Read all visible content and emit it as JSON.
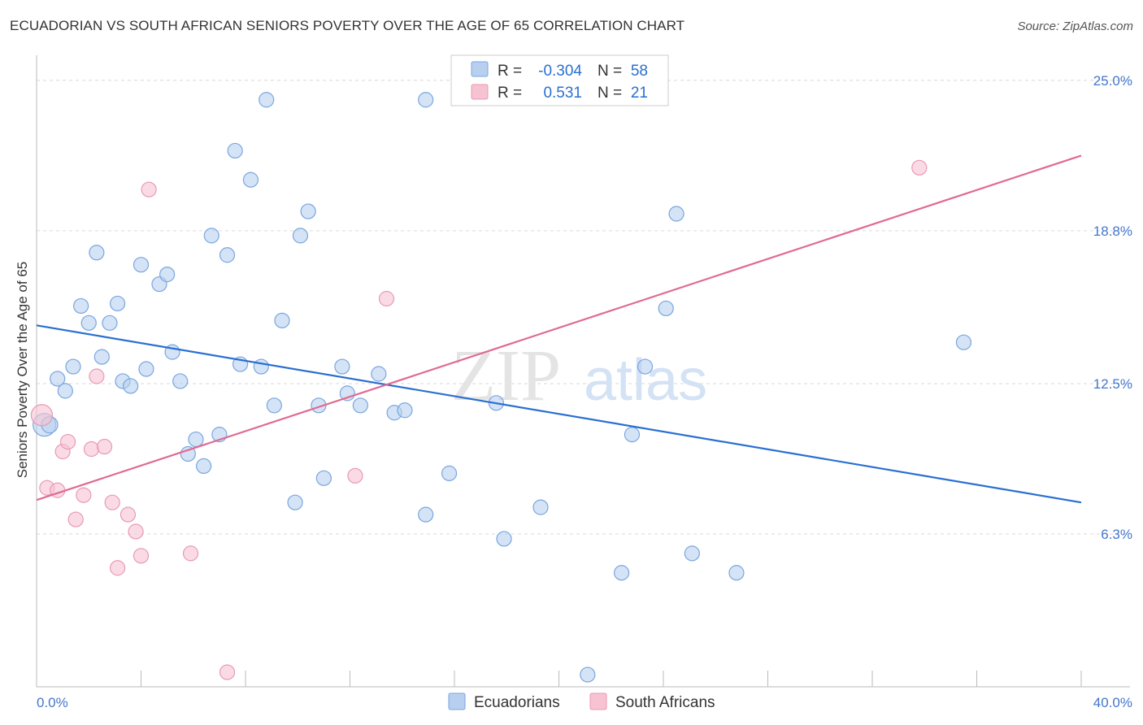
{
  "title": "ECUADORIAN VS SOUTH AFRICAN SENIORS POVERTY OVER THE AGE OF 65 CORRELATION CHART",
  "source": "Source: ZipAtlas.com",
  "watermark": {
    "zip": "ZIP",
    "atlas": "atlas"
  },
  "colors": {
    "blue_fill": "#b8d0f0",
    "blue_stroke": "#7aa6de",
    "blue_line": "#2a6fd1",
    "pink_fill": "#f7c3d3",
    "pink_stroke": "#e89ab3",
    "pink_line": "#e06a93",
    "grid": "#d9d9d9",
    "tick_label": "#4477cc"
  },
  "legend_box": {
    "rows": [
      {
        "r_label": "R =",
        "r_value": "-0.304",
        "n_label": "N =",
        "n_value": "58",
        "series": "blue"
      },
      {
        "r_label": "R =",
        "r_value": "0.531",
        "n_label": "N =",
        "n_value": "21",
        "series": "pink"
      }
    ]
  },
  "chart_data": {
    "type": "scatter",
    "xlabel": "",
    "ylabel": "Seniors Poverty Over the Age of 65",
    "xlim": [
      0,
      40
    ],
    "ylim": [
      0,
      25.8
    ],
    "y_ticks": [
      {
        "value": 6.3,
        "label": "6.3%"
      },
      {
        "value": 12.5,
        "label": "12.5%"
      },
      {
        "value": 18.8,
        "label": "18.8%"
      },
      {
        "value": 25.0,
        "label": "25.0%"
      }
    ],
    "x_ticks": [
      {
        "value": 0,
        "label": "0.0%"
      },
      {
        "value": 40,
        "label": "40.0%"
      }
    ],
    "x_minor_ticks": [
      0,
      4,
      8,
      12,
      16,
      20,
      24,
      28,
      32,
      36,
      40
    ],
    "legend_position": "bottom",
    "series": [
      {
        "name": "Ecuadorians",
        "color": "blue",
        "trend": {
          "x": [
            0,
            40
          ],
          "y": [
            14.9,
            7.6
          ]
        },
        "points": [
          {
            "x": 0.3,
            "y": 10.8,
            "s": 14
          },
          {
            "x": 0.5,
            "y": 10.8,
            "s": 10
          },
          {
            "x": 0.8,
            "y": 12.7,
            "s": 9
          },
          {
            "x": 1.1,
            "y": 12.2,
            "s": 9
          },
          {
            "x": 1.4,
            "y": 13.2,
            "s": 9
          },
          {
            "x": 1.7,
            "y": 15.7,
            "s": 9
          },
          {
            "x": 2.0,
            "y": 15.0,
            "s": 9
          },
          {
            "x": 2.3,
            "y": 17.9,
            "s": 9
          },
          {
            "x": 2.5,
            "y": 13.6,
            "s": 9
          },
          {
            "x": 2.8,
            "y": 15.0,
            "s": 9
          },
          {
            "x": 3.1,
            "y": 15.8,
            "s": 9
          },
          {
            "x": 3.3,
            "y": 12.6,
            "s": 9
          },
          {
            "x": 3.6,
            "y": 12.4,
            "s": 9
          },
          {
            "x": 4.0,
            "y": 17.4,
            "s": 9
          },
          {
            "x": 4.2,
            "y": 13.1,
            "s": 9
          },
          {
            "x": 4.7,
            "y": 16.6,
            "s": 9
          },
          {
            "x": 5.0,
            "y": 17.0,
            "s": 9
          },
          {
            "x": 5.2,
            "y": 13.8,
            "s": 9
          },
          {
            "x": 5.5,
            "y": 12.6,
            "s": 9
          },
          {
            "x": 5.8,
            "y": 9.6,
            "s": 9
          },
          {
            "x": 6.1,
            "y": 10.2,
            "s": 9
          },
          {
            "x": 6.4,
            "y": 9.1,
            "s": 9
          },
          {
            "x": 6.7,
            "y": 18.6,
            "s": 9
          },
          {
            "x": 7.0,
            "y": 10.4,
            "s": 9
          },
          {
            "x": 7.3,
            "y": 17.8,
            "s": 9
          },
          {
            "x": 7.6,
            "y": 22.1,
            "s": 9
          },
          {
            "x": 7.8,
            "y": 13.3,
            "s": 9
          },
          {
            "x": 8.2,
            "y": 20.9,
            "s": 9
          },
          {
            "x": 8.6,
            "y": 13.2,
            "s": 9
          },
          {
            "x": 8.8,
            "y": 24.2,
            "s": 9
          },
          {
            "x": 9.1,
            "y": 11.6,
            "s": 9
          },
          {
            "x": 9.4,
            "y": 15.1,
            "s": 9
          },
          {
            "x": 9.9,
            "y": 7.6,
            "s": 9
          },
          {
            "x": 10.1,
            "y": 18.6,
            "s": 9
          },
          {
            "x": 10.4,
            "y": 19.6,
            "s": 9
          },
          {
            "x": 10.8,
            "y": 11.6,
            "s": 9
          },
          {
            "x": 11.0,
            "y": 8.6,
            "s": 9
          },
          {
            "x": 11.7,
            "y": 13.2,
            "s": 9
          },
          {
            "x": 11.9,
            "y": 12.1,
            "s": 9
          },
          {
            "x": 12.4,
            "y": 11.6,
            "s": 9
          },
          {
            "x": 13.1,
            "y": 12.9,
            "s": 9
          },
          {
            "x": 13.7,
            "y": 11.3,
            "s": 9
          },
          {
            "x": 14.1,
            "y": 11.4,
            "s": 9
          },
          {
            "x": 14.9,
            "y": 7.1,
            "s": 9
          },
          {
            "x": 14.9,
            "y": 24.2,
            "s": 9
          },
          {
            "x": 15.8,
            "y": 8.8,
            "s": 9
          },
          {
            "x": 17.6,
            "y": 11.7,
            "s": 9
          },
          {
            "x": 17.9,
            "y": 6.1,
            "s": 9
          },
          {
            "x": 19.3,
            "y": 7.4,
            "s": 9
          },
          {
            "x": 21.1,
            "y": 0.5,
            "s": 9
          },
          {
            "x": 22.4,
            "y": 4.7,
            "s": 9
          },
          {
            "x": 22.8,
            "y": 10.4,
            "s": 9
          },
          {
            "x": 23.3,
            "y": 13.2,
            "s": 9
          },
          {
            "x": 24.1,
            "y": 15.6,
            "s": 9
          },
          {
            "x": 24.5,
            "y": 19.5,
            "s": 9
          },
          {
            "x": 25.1,
            "y": 5.5,
            "s": 9
          },
          {
            "x": 26.8,
            "y": 4.7,
            "s": 9
          },
          {
            "x": 35.5,
            "y": 14.2,
            "s": 9
          }
        ]
      },
      {
        "name": "South Africans",
        "color": "pink",
        "trend": {
          "x": [
            0,
            40
          ],
          "y": [
            7.7,
            21.9
          ]
        },
        "points": [
          {
            "x": 0.2,
            "y": 11.2,
            "s": 13
          },
          {
            "x": 0.4,
            "y": 8.2,
            "s": 9
          },
          {
            "x": 0.8,
            "y": 8.1,
            "s": 9
          },
          {
            "x": 1.0,
            "y": 9.7,
            "s": 9
          },
          {
            "x": 1.2,
            "y": 10.1,
            "s": 9
          },
          {
            "x": 1.5,
            "y": 6.9,
            "s": 9
          },
          {
            "x": 1.8,
            "y": 7.9,
            "s": 9
          },
          {
            "x": 2.1,
            "y": 9.8,
            "s": 9
          },
          {
            "x": 2.3,
            "y": 12.8,
            "s": 9
          },
          {
            "x": 2.6,
            "y": 9.9,
            "s": 9
          },
          {
            "x": 2.9,
            "y": 7.6,
            "s": 9
          },
          {
            "x": 3.1,
            "y": 4.9,
            "s": 9
          },
          {
            "x": 3.5,
            "y": 7.1,
            "s": 9
          },
          {
            "x": 3.8,
            "y": 6.4,
            "s": 9
          },
          {
            "x": 4.0,
            "y": 5.4,
            "s": 9
          },
          {
            "x": 4.3,
            "y": 20.5,
            "s": 9
          },
          {
            "x": 5.9,
            "y": 5.5,
            "s": 9
          },
          {
            "x": 7.3,
            "y": 0.6,
            "s": 9
          },
          {
            "x": 12.2,
            "y": 8.7,
            "s": 9
          },
          {
            "x": 13.4,
            "y": 16.0,
            "s": 9
          },
          {
            "x": 33.8,
            "y": 21.4,
            "s": 9
          }
        ]
      }
    ]
  }
}
